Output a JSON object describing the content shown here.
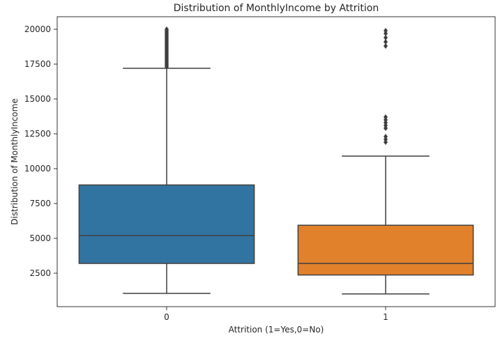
{
  "chart_data": {
    "type": "box",
    "title": "Distribution of MonthlyIncome by Attrition",
    "xlabel": "Attrition (1=Yes,0=No)",
    "ylabel": "Distribution of MonthlyIncome",
    "categories": [
      "0",
      "1"
    ],
    "yticks": [
      2500,
      5000,
      7500,
      10000,
      12500,
      15000,
      17500,
      20000
    ],
    "ylim": [
      0,
      20000
    ],
    "grid": false,
    "boxes": [
      {
        "category": "0",
        "color": "#3274a1",
        "whisker_low": 1050,
        "q1": 3200,
        "median": 5200,
        "q3": 8830,
        "whisker_high": 17200,
        "outliers": [
          17300,
          17400,
          17500,
          17600,
          17700,
          17800,
          17900,
          18000,
          18100,
          18200,
          18300,
          18400,
          18500,
          18600,
          18700,
          18800,
          18900,
          19000,
          19100,
          19200,
          19300,
          19400,
          19500,
          19600,
          19700,
          19800,
          19900,
          20000
        ]
      },
      {
        "category": "1",
        "color": "#e1812c",
        "whisker_low": 1010,
        "q1": 2370,
        "median": 3200,
        "q3": 5940,
        "whisker_high": 10900,
        "outliers": [
          11900,
          12100,
          12300,
          12900,
          13100,
          13300,
          13500,
          13700,
          18800,
          19100,
          19400,
          19700,
          19900
        ]
      }
    ]
  }
}
